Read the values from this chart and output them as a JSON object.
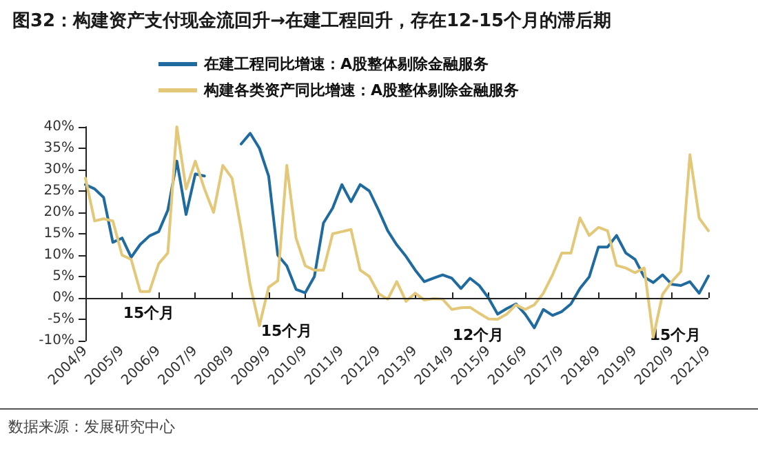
{
  "chart_data": {
    "type": "line",
    "title": "图32：构建资产支付现金流回升→在建工程回升，存在12-15个月的滞后期",
    "x": [
      "2004-09",
      "2004-12",
      "2005-03",
      "2005-06",
      "2005-09",
      "2005-12",
      "2006-03",
      "2006-06",
      "2006-09",
      "2006-12",
      "2007-03",
      "2007-06",
      "2007-09",
      "2007-12",
      "2008-03",
      "2008-06",
      "2008-09",
      "2008-12",
      "2009-03",
      "2009-06",
      "2009-09",
      "2009-12",
      "2010-03",
      "2010-06",
      "2010-09",
      "2010-12",
      "2011-03",
      "2011-06",
      "2011-09",
      "2011-12",
      "2012-03",
      "2012-06",
      "2012-09",
      "2012-12",
      "2013-03",
      "2013-06",
      "2013-09",
      "2013-12",
      "2014-03",
      "2014-06",
      "2014-09",
      "2014-12",
      "2015-03",
      "2015-06",
      "2015-09",
      "2015-12",
      "2016-03",
      "2016-06",
      "2016-09",
      "2016-12",
      "2017-03",
      "2017-06",
      "2017-09",
      "2017-12",
      "2018-03",
      "2018-06",
      "2018-09",
      "2018-12",
      "2019-03",
      "2019-06",
      "2019-09",
      "2019-12",
      "2020-03",
      "2020-06",
      "2020-09",
      "2020-12",
      "2021-03",
      "2021-06",
      "2021-09"
    ],
    "series": [
      {
        "name": "在建工程同比增速：A股整体剔除金融服务",
        "color": "#1f6a9e",
        "values": [
          26.5,
          25.5,
          23.5,
          13,
          14,
          9.5,
          12.5,
          14.5,
          15.5,
          20.5,
          32,
          19.5,
          29,
          28.5,
          null,
          null,
          null,
          36,
          38.5,
          35,
          28.5,
          10,
          7.5,
          2,
          1.2,
          5,
          17.5,
          21,
          26.5,
          22.5,
          26.5,
          25,
          20.5,
          15.7,
          12.4,
          9.7,
          6.5,
          3.8,
          4.6,
          5.4,
          4.6,
          2.2,
          4.6,
          2.9,
          0,
          -3.8,
          -2.5,
          -1.4,
          -3.8,
          -7,
          -2.7,
          -4.1,
          -3.2,
          -1.4,
          2.2,
          4.9,
          11.9,
          11.9,
          14.6,
          10.5,
          9,
          4.9,
          3.6,
          5.4,
          3.2,
          2.9,
          3.8,
          1.1,
          5.1
        ]
      },
      {
        "name": "构建各类资产同比增速：A股整体剔除金融服务",
        "color": "#e3c879",
        "values": [
          28,
          18,
          18.5,
          18,
          10,
          9,
          1.5,
          1.5,
          8,
          10.5,
          40,
          25.5,
          32,
          25.5,
          20,
          31,
          28,
          16,
          3,
          -6.5,
          2.5,
          4,
          31,
          14,
          7.5,
          6.5,
          6.5,
          15,
          15.5,
          16,
          6.5,
          5,
          1,
          -0.3,
          3.8,
          -0.8,
          1.1,
          -0.5,
          -0.2,
          -0.3,
          -2.7,
          -2.3,
          -2.2,
          -3.6,
          -4.9,
          -5,
          -3.8,
          -1.6,
          -2.7,
          -1.6,
          1.1,
          5.4,
          10.5,
          10.5,
          18.7,
          14.6,
          16.5,
          15.7,
          7.6,
          7,
          5.9,
          7,
          -9.2,
          0.8,
          3.8,
          6.2,
          33.5,
          18.7,
          15.7
        ]
      }
    ],
    "xlim": [
      "2004-09",
      "2021-09"
    ],
    "xticks": [
      {
        "value": "2004-09",
        "label": "2004/9"
      },
      {
        "value": "2005-09",
        "label": "2005/9"
      },
      {
        "value": "2006-09",
        "label": "2006/9"
      },
      {
        "value": "2007-09",
        "label": "2007/9"
      },
      {
        "value": "2008-09",
        "label": "2008/9"
      },
      {
        "value": "2009-09",
        "label": "2009/9"
      },
      {
        "value": "2010-09",
        "label": "2010/9"
      },
      {
        "value": "2011-09",
        "label": "2011/9"
      },
      {
        "value": "2012-09",
        "label": "2012/9"
      },
      {
        "value": "2013-09",
        "label": "2013/9"
      },
      {
        "value": "2014-09",
        "label": "2014/9"
      },
      {
        "value": "2015-09",
        "label": "2015/9"
      },
      {
        "value": "2016-09",
        "label": "2016/9"
      },
      {
        "value": "2017-09",
        "label": "2017/9"
      },
      {
        "value": "2018-09",
        "label": "2018/9"
      },
      {
        "value": "2019-09",
        "label": "2019/9"
      },
      {
        "value": "2020-09",
        "label": "2020/9"
      },
      {
        "value": "2021-09",
        "label": "2021/9"
      }
    ],
    "ylim": [
      -10,
      40
    ],
    "yticks": [
      {
        "value": -10,
        "label": "-10%"
      },
      {
        "value": -5,
        "label": "-5%"
      },
      {
        "value": 0,
        "label": "0%"
      },
      {
        "value": 5,
        "label": "5%"
      },
      {
        "value": 10,
        "label": "10%"
      },
      {
        "value": 15,
        "label": "15%"
      },
      {
        "value": 20,
        "label": "20%"
      },
      {
        "value": 25,
        "label": "25%"
      },
      {
        "value": 30,
        "label": "30%"
      },
      {
        "value": 35,
        "label": "35%"
      },
      {
        "value": 40,
        "label": "40%"
      }
    ],
    "annotations": [
      "15个月",
      "15个月",
      "12个月",
      "15个月",
      "数据来源：发展研究中心"
    ],
    "ref_lines": [
      {
        "axis": "y",
        "value": 0,
        "color": "#222222"
      }
    ],
    "grid": false,
    "legend": "top",
    "marker": "none",
    "line_style": "solid"
  }
}
